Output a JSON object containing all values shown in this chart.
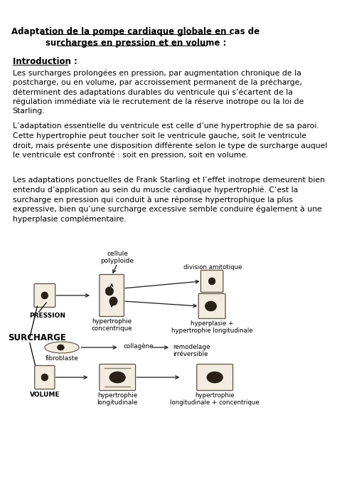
{
  "bg_color": "#ffffff",
  "title_line1": "Adaptation de la pompe cardiaque globale en cas de",
  "title_line2": "surcharges en pression et en volume :",
  "section1_header": "Introduction :",
  "para1": "Les surcharges prolongées en pression, par augmentation chronique de la\npostcharge, ou en volume, par accroissement permanent de la précharge,\ndéterminent des adaptations durables du ventricule qui s’écartent de la\nrégulation immédiate via le recrutement de la réserve inotrope ou la loi de\nStarling.",
  "para2": "L’adaptation essentielle du ventricule est celle d’une hypertrophie de sa paroi.\nCette hypertrophie peut toucher soit le ventricule gauche, soit le ventricule\ndroit, mais présente une disposition différente selon le type de surcharge auquel\nle ventricule est confronté : soit en pression, soit en volume.",
  "para3": "Les adaptations ponctuelles de Frank Starling et l’effet inotrope demeurent bien\nentendu d’application au sein du muscle cardiaque hypertrophié. C’est la\nsurcharge en pression qui conduit à une réponse hypertrophique la plus\nexpressive, bien qu’une surcharge excessive semble conduire également à une\nhyperplasie complémentaire.",
  "label_surcharge": "SURCHARGE",
  "label_pression": "PRESSION",
  "label_volume": "VOLUME",
  "label_cellule_polyploide": "cellule\npolyploide",
  "label_hypertrophie_concentrique": "hypertrophie\nconcentrique",
  "label_division_amitotique": "division amitotique",
  "label_hyperplasie": "hyperplasie +\nhypertrophie longitudinale",
  "label_fibroblaste": "fibroblaste",
  "label_collagene": "collagène",
  "label_remodelage": "remodelage\nirréversible",
  "label_hypertrophie_longitudinale": "hypertrophie\nlongitudinale",
  "label_hypertrophie_long_conc": "hypertrophie\nlongitudinale + concentrique",
  "cell_face_color": "#f2ede0",
  "cell_edge_color": "#5a5040",
  "nucleus_color": "#2a2015",
  "arrow_color": "#1a1a1a"
}
